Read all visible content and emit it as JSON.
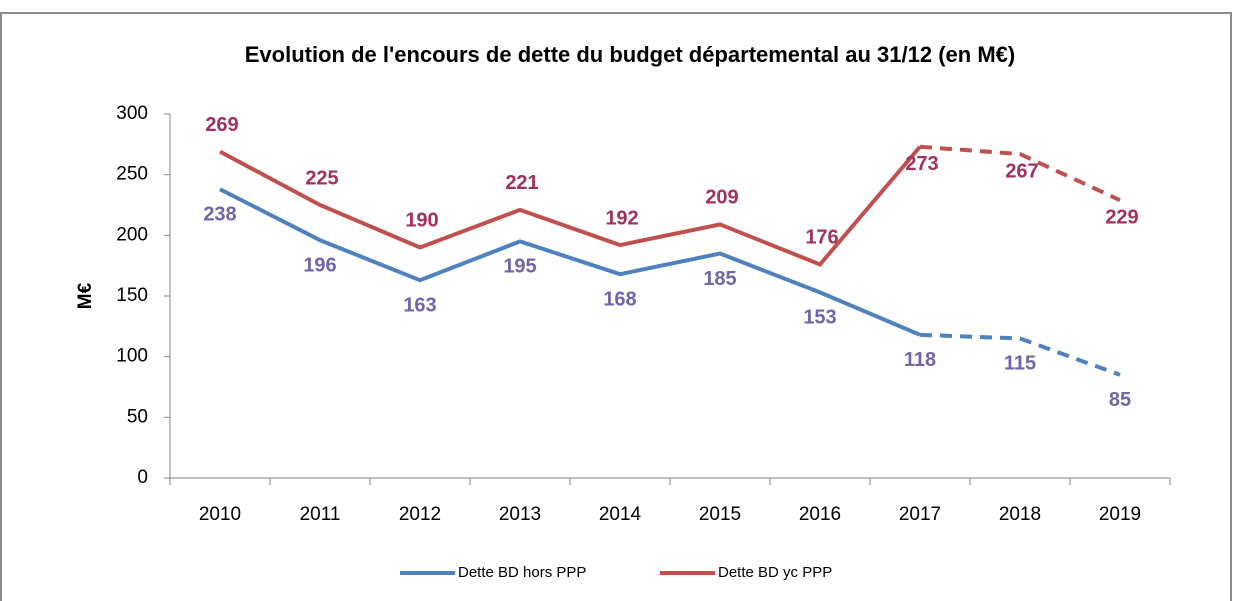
{
  "chart_data": {
    "type": "line",
    "title": "Evolution de l'encours de dette du budget départemental au 31/12 (en M€)",
    "y_label": "M€",
    "categories": [
      "2010",
      "2011",
      "2012",
      "2013",
      "2014",
      "2015",
      "2016",
      "2017",
      "2018",
      "2019"
    ],
    "series": [
      {
        "name": "Dette BD hors PPP",
        "color": "#4f81bd",
        "label_color": "#7065a8",
        "values": [
          238,
          196,
          163,
          195,
          168,
          185,
          153,
          118,
          115,
          85
        ]
      },
      {
        "name": "Dette BD yc PPP",
        "color": "#c0504d",
        "label_color": "#a2305f",
        "values": [
          269,
          225,
          190,
          221,
          192,
          209,
          176,
          273,
          267,
          229
        ]
      }
    ],
    "dash_from": "2017",
    "ylim": [
      0,
      300
    ],
    "yticks": [
      0,
      50,
      100,
      150,
      200,
      250,
      300
    ],
    "grid": false,
    "legend": "bottom"
  }
}
